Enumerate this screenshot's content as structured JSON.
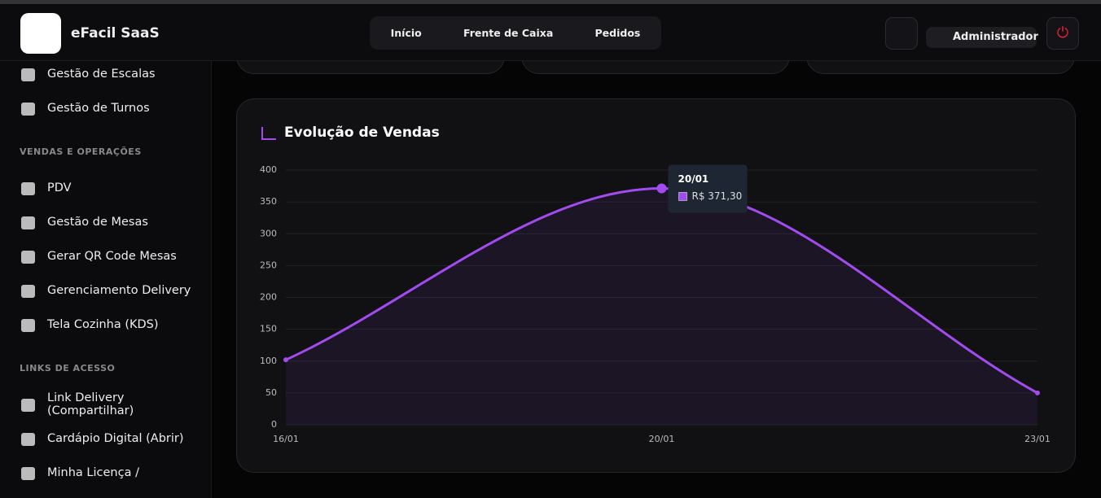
{
  "header": {
    "brand": "eFacil SaaS",
    "nav": [
      "Início",
      "Frente de Caixa",
      "Pedidos"
    ],
    "user": "Administrador"
  },
  "sidebar": {
    "items": [
      "Gestão de Escalas",
      "Gestão de Turnos"
    ],
    "sections": [
      {
        "title": "VENDAS E OPERAÇÕES",
        "items": [
          "PDV",
          "Gestão de Mesas",
          "Gerar QR Code Mesas",
          "Gerenciamento Delivery",
          "Tela Cozinha (KDS)"
        ]
      },
      {
        "title": "LINKS DE ACESSO",
        "items": [
          "Link Delivery (Compartilhar)",
          "Cardápio Digital (Abrir)",
          "Minha Licença /"
        ]
      }
    ]
  },
  "chart_data": {
    "type": "line",
    "title": "Evolução de Vendas",
    "categories": [
      "16/01",
      "20/01",
      "23/01"
    ],
    "series": [
      {
        "name": "Vendas",
        "color": "#a24cf0",
        "values": [
          102,
          371.3,
          50
        ],
        "value_labels": [
          null,
          "R$ 371,30",
          null
        ]
      }
    ],
    "ylim": [
      0,
      400
    ],
    "yticks": [
      0,
      50,
      100,
      150,
      200,
      250,
      300,
      350,
      400
    ],
    "grid": true
  }
}
